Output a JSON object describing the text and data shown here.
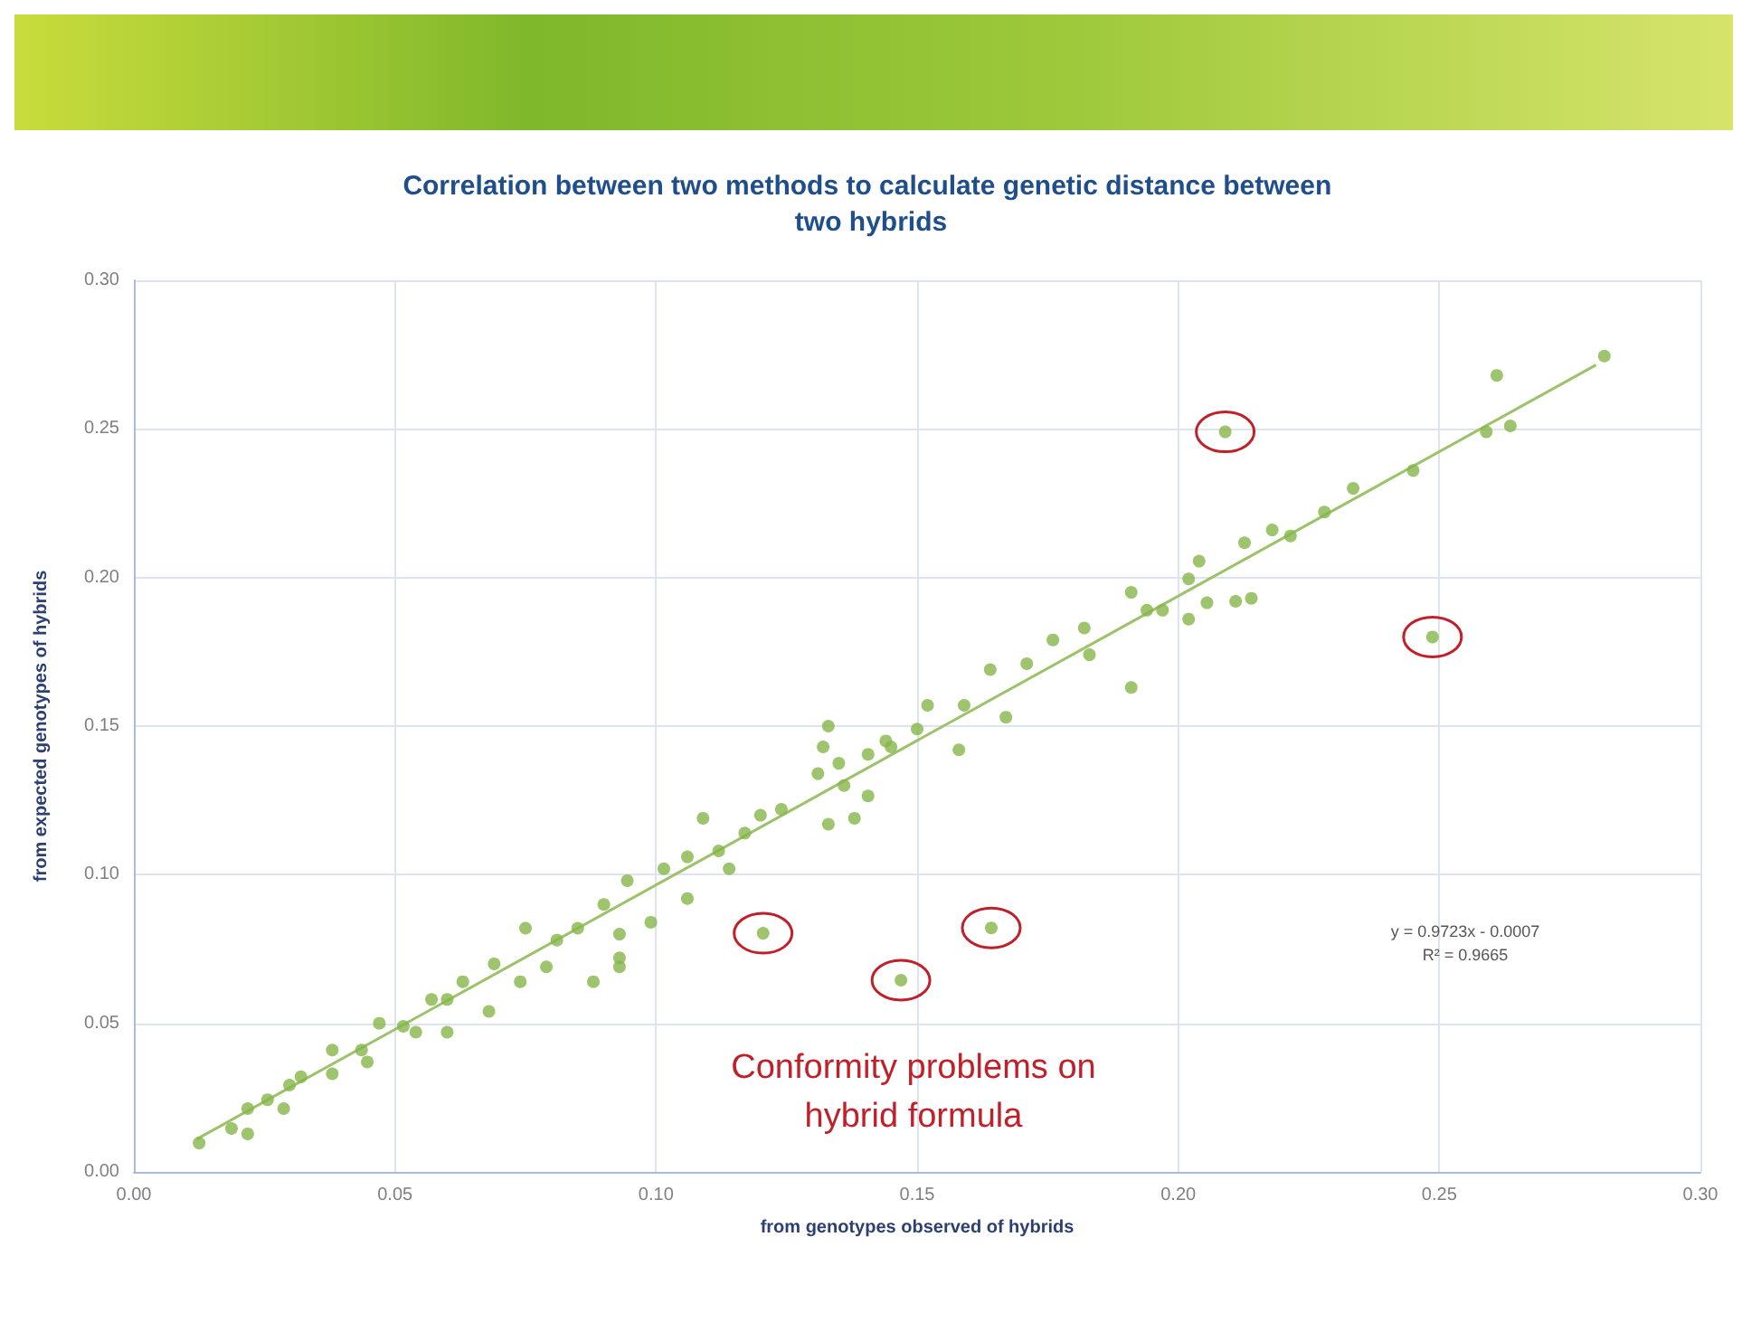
{
  "chart_data": {
    "type": "scatter",
    "title": "Correlation between two methods to calculate genetic distance between two hybrids",
    "xlabel": "from genotypes observed of hybrids",
    "ylabel": "from expected genotypes of hybrids",
    "annotations": [
      "Conformity problems on hybrid formula",
      "y = 0.9723x - 0.0007",
      "R² = 0.9665"
    ],
    "xlim": [
      0,
      0.3
    ],
    "ylim": [
      0,
      0.3
    ],
    "xticks": [
      {
        "value": 0,
        "label": "0.00"
      },
      {
        "value": 0.05,
        "label": "0.05"
      },
      {
        "value": 0.1,
        "label": "0.10"
      },
      {
        "value": 0.15,
        "label": "0.15"
      },
      {
        "value": 0.2,
        "label": "0.20"
      },
      {
        "value": 0.25,
        "label": "0.25"
      },
      {
        "value": 0.3,
        "label": "0.30"
      }
    ],
    "yticks": [
      {
        "value": 0,
        "label": "0.00"
      },
      {
        "value": 0.05,
        "label": "0.05"
      },
      {
        "value": 0.1,
        "label": "0.10"
      },
      {
        "value": 0.15,
        "label": "0.15"
      },
      {
        "value": 0.2,
        "label": "0.20"
      },
      {
        "value": 0.25,
        "label": "0.25"
      },
      {
        "value": 0.3,
        "label": "0.30"
      }
    ],
    "grid": true,
    "marker": "circle",
    "series": [
      {
        "color": "#86b54a",
        "x": [
          0.0125,
          0.0187,
          0.0218,
          0.0218,
          0.0256,
          0.0287,
          0.0298,
          0.032,
          0.038,
          0.038,
          0.0436,
          0.0447,
          0.047,
          0.0516,
          0.054,
          0.057,
          0.06,
          0.06,
          0.063,
          0.068,
          0.069,
          0.074,
          0.075,
          0.079,
          0.081,
          0.085,
          0.088,
          0.093,
          0.093,
          0.093,
          0.09,
          0.0945,
          0.099,
          0.1015,
          0.106,
          0.106,
          0.109,
          0.114,
          0.112,
          0.117,
          0.12,
          0.124,
          0.133,
          0.138,
          0.131,
          0.1406,
          0.136,
          0.133,
          0.132,
          0.135,
          0.145,
          0.15,
          0.1406,
          0.144,
          0.152,
          0.158,
          0.159,
          0.164,
          0.167,
          0.171,
          0.176,
          0.182,
          0.183,
          0.191,
          0.191,
          0.194,
          0.197,
          0.202,
          0.204,
          0.202,
          0.2055,
          0.211,
          0.214,
          0.2127,
          0.218,
          0.2215,
          0.228,
          0.2335,
          0.245,
          0.259,
          0.2636,
          0.261,
          0.2816
        ],
        "values": [
          0.0097,
          0.0146,
          0.0128,
          0.0213,
          0.0243,
          0.0213,
          0.0292,
          0.032,
          0.041,
          0.033,
          0.041,
          0.037,
          0.05,
          0.049,
          0.047,
          0.058,
          0.047,
          0.058,
          0.064,
          0.054,
          0.07,
          0.064,
          0.082,
          0.069,
          0.078,
          0.082,
          0.064,
          0.072,
          0.069,
          0.08,
          0.09,
          0.098,
          0.084,
          0.102,
          0.092,
          0.106,
          0.119,
          0.102,
          0.108,
          0.114,
          0.12,
          0.122,
          0.117,
          0.119,
          0.134,
          0.1265,
          0.13,
          0.15,
          0.143,
          0.1375,
          0.143,
          0.149,
          0.1405,
          0.145,
          0.157,
          0.142,
          0.157,
          0.169,
          0.153,
          0.171,
          0.179,
          0.183,
          0.174,
          0.195,
          0.163,
          0.189,
          0.189,
          0.1995,
          0.2055,
          0.186,
          0.1915,
          0.192,
          0.193,
          0.2117,
          0.216,
          0.214,
          0.222,
          0.23,
          0.236,
          0.249,
          0.251,
          0.268,
          0.2745
        ]
      },
      {
        "color": "#86b54a",
        "x": [
          0.209,
          0.2487,
          0.1205,
          0.1469,
          0.1642
        ],
        "values": [
          0.249,
          0.18,
          0.0803,
          0.0645,
          0.0821
        ]
      },
      {
        "type": "line",
        "color": "#9cc26a",
        "marker": "none",
        "line_style": "solid",
        "x": [
          0.012,
          0.28
        ],
        "values": [
          0.011,
          0.2715
        ]
      }
    ]
  }
}
